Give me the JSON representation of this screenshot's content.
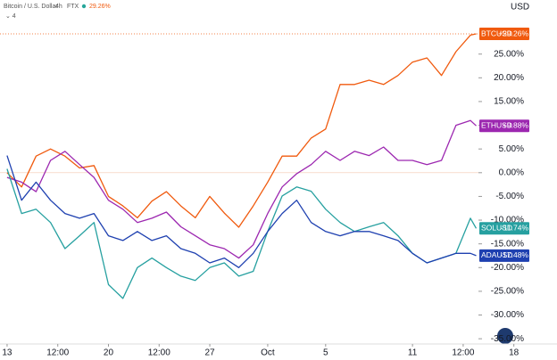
{
  "chart_data": {
    "type": "line",
    "title": "Bitcoin / U.S. Dollar",
    "interval": "4h",
    "exchange": "FTX",
    "header_change": "29.26%",
    "currency": "USD",
    "x": [
      0,
      1,
      2,
      3,
      4,
      5,
      6,
      7,
      8,
      9,
      10,
      11,
      12,
      13,
      14,
      15,
      16,
      17,
      18,
      19,
      20,
      21,
      22,
      23,
      24,
      25,
      26,
      27,
      28,
      29,
      30,
      31,
      32,
      32.4
    ],
    "xlim": [
      -0.49,
      36.5
    ],
    "xticks": [
      {
        "value": 0,
        "label": "13"
      },
      {
        "value": 3.5,
        "label": "12:00"
      },
      {
        "value": 7,
        "label": "20"
      },
      {
        "value": 10.5,
        "label": "12:00"
      },
      {
        "value": 14,
        "label": "27"
      },
      {
        "value": 18,
        "label": "Oct"
      },
      {
        "value": 22,
        "label": "5"
      },
      {
        "value": 28,
        "label": "11"
      },
      {
        "value": 31.5,
        "label": "12:00"
      },
      {
        "value": 35,
        "label": "18"
      }
    ],
    "ylim": [
      -36.1,
      36.4
    ],
    "yticks": [
      {
        "value": 25,
        "label": "25.00%"
      },
      {
        "value": 20,
        "label": "20.00%"
      },
      {
        "value": 15,
        "label": "15.00%"
      },
      {
        "value": 10,
        "label": "10.00%"
      },
      {
        "value": 5,
        "label": "5.00%"
      },
      {
        "value": 0,
        "label": "0.00%"
      },
      {
        "value": -5,
        "label": "-5.00%"
      },
      {
        "value": -10,
        "label": "-10.00%"
      },
      {
        "value": -15,
        "label": "-15.00%"
      },
      {
        "value": -20,
        "label": "-20.00%"
      },
      {
        "value": -25,
        "label": "-25.00%"
      },
      {
        "value": -30,
        "label": "-30.00%"
      },
      {
        "value": -35,
        "label": "-35.00%"
      }
    ],
    "series": [
      {
        "name": "BTCUSD",
        "color": "#f05a0e",
        "last_label": "+29.26%",
        "values": [
          0,
          -3,
          3.5,
          5,
          3.5,
          1,
          1.5,
          -5,
          -7,
          -9.5,
          -6,
          -4,
          -7,
          -9.5,
          -5,
          -8.5,
          -11.5,
          -7,
          -2,
          3.5,
          3.5,
          7.3,
          9.2,
          18.6,
          18.6,
          19.5,
          18.6,
          20.5,
          23.3,
          24.2,
          20.5,
          25.5,
          29,
          29.26
        ]
      },
      {
        "name": "ETHUSD",
        "color": "#9c27b0",
        "last_label": "+9.88%",
        "values": [
          -1,
          -2,
          -4,
          2.6,
          4.5,
          1.7,
          -1,
          -5.8,
          -7.7,
          -10.5,
          -9.6,
          -8.3,
          -11.4,
          -13.3,
          -15.2,
          -16,
          -18,
          -15.2,
          -8.6,
          -3,
          -0.2,
          1.7,
          4.5,
          2.6,
          4.5,
          3.6,
          5.4,
          2.6,
          2.6,
          1.7,
          2.6,
          10,
          11,
          9.88
        ]
      },
      {
        "name": "SOLUSD",
        "color": "#26a0a0",
        "last_label": "-11.74%",
        "values": [
          0.8,
          -8.6,
          -7.7,
          -10.5,
          -16,
          -13.3,
          -10.5,
          -23.6,
          -26.5,
          -20,
          -18,
          -20,
          -21.8,
          -22.7,
          -20,
          -19,
          -21.8,
          -20.8,
          -12.4,
          -4.9,
          -3,
          -3.9,
          -7.7,
          -10.5,
          -12.4,
          -11.4,
          -10.5,
          -13.3,
          -17,
          -19,
          -18,
          -17,
          -9.6,
          -11.74
        ]
      },
      {
        "name": "ADAUSD",
        "color": "#1e40b0",
        "last_label": "-17.48%",
        "values": [
          3.6,
          -5.8,
          -2,
          -5.8,
          -8.6,
          -9.6,
          -8.6,
          -13.3,
          -14.3,
          -12.4,
          -14.3,
          -13.3,
          -16,
          -17,
          -19,
          -18,
          -20,
          -17,
          -12.4,
          -8.6,
          -5.8,
          -10.5,
          -12.4,
          -13.3,
          -12.4,
          -12.4,
          -13.3,
          -14.3,
          -17,
          -19,
          -18,
          -17,
          -17,
          -17.48
        ]
      }
    ]
  }
}
